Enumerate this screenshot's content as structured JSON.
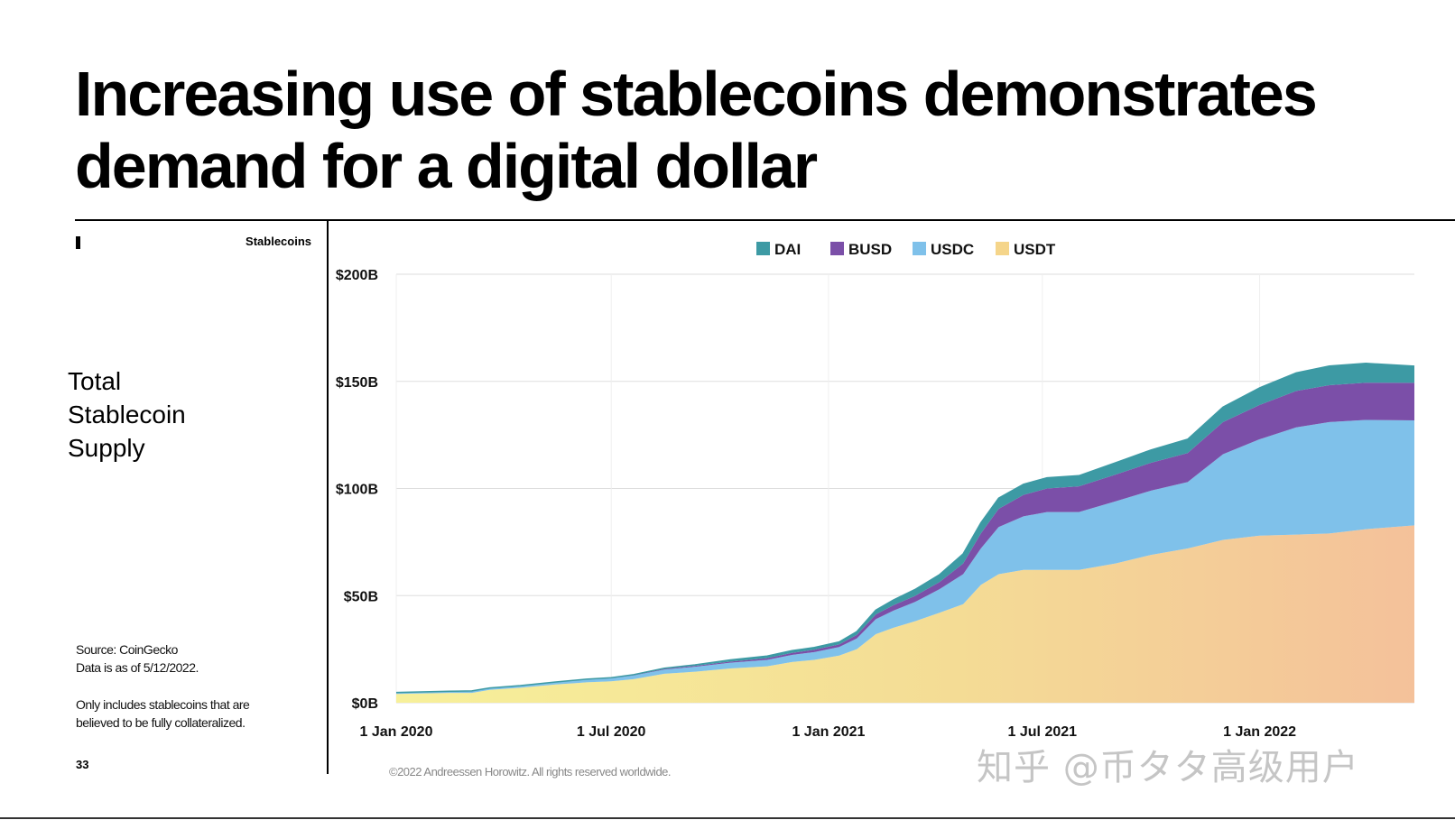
{
  "slide": {
    "title": "Increasing use of stablecoins demonstrates\ndemand for a digital dollar",
    "section_label": "Stablecoins",
    "side_heading": "Total\nStablecoin\nSupply",
    "source": "Source: CoinGecko\n Data is as of 5/12/2022.",
    "note": "Only includes stablecoins that are\nbelieved to be fully collateralized.",
    "page_number": "33",
    "copyright": "©2022 Andreessen Horowitz. All rights reserved worldwide.",
    "watermark": "知乎 @币タタ高级用户"
  },
  "chart_data": {
    "type": "area",
    "stacked": true,
    "x": [
      "2020-01-01",
      "2020-02-15",
      "2020-03-05",
      "2020-03-20",
      "2020-04-15",
      "2020-05-15",
      "2020-06-10",
      "2020-07-01",
      "2020-07-20",
      "2020-08-15",
      "2020-09-10",
      "2020-10-10",
      "2020-11-10",
      "2020-12-01",
      "2020-12-20",
      "2021-01-10",
      "2021-01-25",
      "2021-02-10",
      "2021-02-25",
      "2021-03-15",
      "2021-04-05",
      "2021-04-25",
      "2021-05-10",
      "2021-05-25",
      "2021-06-15",
      "2021-07-05",
      "2021-08-01",
      "2021-09-01",
      "2021-10-01",
      "2021-11-01",
      "2021-12-01",
      "2022-01-01",
      "2022-02-01",
      "2022-03-01",
      "2022-04-01",
      "2022-05-12"
    ],
    "series": [
      {
        "name": "USDT",
        "color": "#f5d58a",
        "values": [
          4.1,
          4.6,
          4.6,
          6.0,
          7.0,
          8.5,
          9.5,
          10.0,
          11.0,
          13.5,
          14.5,
          16.0,
          17.0,
          19.0,
          20.0,
          22.0,
          25.0,
          32.0,
          35.0,
          38.0,
          42.0,
          46.0,
          55.0,
          60.0,
          62.0,
          62.0,
          62.0,
          65.0,
          69.0,
          72.0,
          76.0,
          78.0,
          78.5,
          79.0,
          81.0,
          82.8
        ]
      },
      {
        "name": "USDC",
        "color": "#7fc1ea",
        "values": [
          0.5,
          0.6,
          0.7,
          0.7,
          0.8,
          1.0,
          1.3,
          1.4,
          1.7,
          2.0,
          2.3,
          2.7,
          3.0,
          3.3,
          3.6,
          4.0,
          5.0,
          7.0,
          8.0,
          9.0,
          11.0,
          14.0,
          17.0,
          22.0,
          25.0,
          27.0,
          27.0,
          29.0,
          30.0,
          31.0,
          40.0,
          45.0,
          50.0,
          52.0,
          51.0,
          49.0
        ]
      },
      {
        "name": "BUSD",
        "color": "#7b4fa8",
        "values": [
          0.1,
          0.1,
          0.1,
          0.1,
          0.1,
          0.1,
          0.1,
          0.2,
          0.2,
          0.3,
          0.4,
          0.5,
          0.8,
          1.0,
          1.1,
          1.2,
          1.7,
          2.2,
          2.5,
          2.8,
          3.3,
          5.0,
          7.0,
          8.5,
          10.0,
          11.0,
          12.0,
          12.5,
          13.0,
          13.5,
          15.0,
          16.0,
          17.0,
          17.2,
          17.4,
          17.5
        ]
      },
      {
        "name": "DAI",
        "color": "#3d9aa4",
        "values": [
          0.1,
          0.1,
          0.1,
          0.1,
          0.1,
          0.1,
          0.1,
          0.1,
          0.2,
          0.3,
          0.5,
          0.8,
          1.0,
          1.0,
          1.1,
          1.2,
          1.5,
          2.0,
          2.5,
          3.0,
          3.5,
          4.5,
          5.0,
          5.0,
          5.0,
          5.0,
          5.0,
          5.5,
          6.0,
          6.5,
          7.0,
          8.0,
          8.5,
          9.0,
          9.0,
          7.8
        ]
      }
    ],
    "title": "",
    "xlabel": "",
    "ylabel": "",
    "ylim": [
      0,
      200
    ],
    "y_ticks": [
      0,
      50,
      100,
      150,
      200
    ],
    "y_tick_labels": [
      "$0B",
      "$50B",
      "$100B",
      "$150B",
      "$200B"
    ],
    "x_ticks": [
      "2020-01-01",
      "2020-07-01",
      "2021-01-01",
      "2021-07-01",
      "2022-01-01"
    ],
    "x_tick_labels": [
      "1 Jan 2020",
      "1 Jul 2020",
      "1 Jan 2021",
      "1 Jul 2021",
      "1 Jan 2022"
    ],
    "xlim": [
      "2020-01-01",
      "2022-05-12"
    ],
    "legend": {
      "placement": "top-center",
      "order": [
        "DAI",
        "BUSD",
        "USDC",
        "USDT"
      ]
    },
    "grid": {
      "horizontal": true,
      "vertical": true
    }
  }
}
